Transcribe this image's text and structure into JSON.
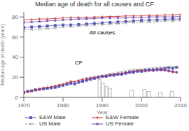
{
  "chart_data": {
    "type": "line",
    "title": "Median age of death for all causes and CF",
    "xlabel": "Year",
    "ylabel": "Median age of death (years)",
    "xlim": [
      1970,
      2010
    ],
    "ylim": [
      0,
      85
    ],
    "xticks": [
      1970,
      1980,
      1990,
      2000,
      2010
    ],
    "yticks": [
      0,
      20,
      40,
      60,
      80
    ],
    "series": [
      {
        "name": "E&W Male",
        "type": "line",
        "color": "#5555bb",
        "marker": "square",
        "line_style": "solid",
        "x": [
          1970,
          1972,
          1974,
          1976,
          1978,
          1980,
          1982,
          1984,
          1986,
          1988,
          1990,
          1992,
          1994,
          1996,
          1998,
          2000,
          2002,
          2004,
          2006,
          2008,
          2010
        ],
        "values": [
          69.5,
          70,
          70.5,
          71,
          71.5,
          72,
          72,
          72.5,
          73,
          73.5,
          74,
          74.5,
          75,
          75.5,
          76,
          76.5,
          77,
          77,
          77.5,
          78,
          78
        ]
      },
      {
        "name": "E&W Female",
        "type": "line",
        "color": "#cc3333",
        "marker": "plus",
        "line_style": "solid",
        "x": [
          1970,
          1972,
          1974,
          1976,
          1978,
          1980,
          1982,
          1984,
          1986,
          1988,
          1990,
          1992,
          1994,
          1996,
          1998,
          2000,
          2002,
          2004,
          2006,
          2008,
          2010
        ],
        "values": [
          77,
          77.5,
          78,
          78,
          78.5,
          79,
          79.5,
          79.5,
          79.5,
          80,
          80,
          80.5,
          80.5,
          81,
          81,
          81,
          81.5,
          81.5,
          82,
          82,
          82.5
        ]
      },
      {
        "name": "US Male",
        "type": "line",
        "color": "#888888",
        "marker": "x",
        "line_style": "dashed",
        "x": [
          1970,
          1972,
          1974,
          1976,
          1978,
          1980,
          1982,
          1984,
          1986,
          1988,
          1990,
          1992,
          1994,
          1996,
          1998,
          2000,
          2002,
          2004,
          2006,
          2008,
          2010
        ],
        "values": [
          67,
          67.5,
          68,
          68.5,
          69,
          70,
          70.5,
          71,
          71.5,
          72,
          72.5,
          73,
          73.5,
          74,
          74.5,
          75,
          75,
          75.5,
          76,
          76,
          76.5
        ]
      },
      {
        "name": "US Female",
        "type": "line",
        "color": "#7744aa",
        "marker": "star",
        "line_style": "solid",
        "x": [
          1970,
          1972,
          1974,
          1976,
          1978,
          1980,
          1982,
          1984,
          1986,
          1988,
          1990,
          1992,
          1994,
          1996,
          1998,
          2000,
          2002,
          2004,
          2006,
          2008,
          2010
        ],
        "values": [
          74.5,
          75,
          75.5,
          76,
          76.5,
          77,
          77.5,
          78,
          78,
          78.5,
          79,
          79,
          79,
          79,
          79.5,
          79.5,
          80,
          80,
          80,
          80,
          80.5
        ]
      },
      {
        "name": "E&W Male",
        "type": "line",
        "color": "#5555bb",
        "marker": "square",
        "line_style": "solid",
        "x": [
          1970,
          1971,
          1972,
          1973,
          1974,
          1975,
          1976,
          1977,
          1978,
          1979,
          1980,
          1981,
          1982,
          1983,
          1984,
          1985,
          1986,
          1987,
          1988,
          1989,
          1990,
          1991,
          1992,
          1993,
          1994,
          1995,
          1996,
          1997,
          1998,
          1999,
          2000,
          2001,
          2002,
          2003,
          2004,
          2005,
          2006,
          2007,
          2008,
          2009
        ],
        "values": [
          5,
          6,
          6.5,
          7.5,
          8,
          8.5,
          9,
          9.5,
          10,
          11,
          12,
          13,
          14,
          13.5,
          15,
          16,
          17,
          18,
          19,
          20,
          21,
          21,
          22,
          22,
          23,
          23,
          24,
          25,
          25,
          26,
          26,
          27,
          27.5,
          27,
          28,
          28,
          29,
          29.5,
          29,
          30
        ]
      },
      {
        "name": "E&W Female",
        "type": "line",
        "color": "#cc3333",
        "marker": "plus",
        "line_style": "solid",
        "x": [
          1970,
          1971,
          1972,
          1973,
          1974,
          1975,
          1976,
          1977,
          1978,
          1979,
          1980,
          1981,
          1982,
          1983,
          1984,
          1985,
          1986,
          1987,
          1988,
          1989,
          1990,
          1991,
          1992,
          1993,
          1994,
          1995,
          1996,
          1997,
          1998,
          1999,
          2000,
          2001,
          2002,
          2003,
          2004,
          2005,
          2006,
          2007,
          2008,
          2009
        ],
        "values": [
          5,
          5.5,
          6.5,
          7,
          8,
          9.5,
          10,
          10.5,
          11.5,
          12.5,
          13,
          14.5,
          16,
          15.5,
          17,
          18,
          19,
          19.5,
          20,
          20.5,
          21,
          21.5,
          22.5,
          23,
          23.5,
          24,
          24.5,
          25,
          26,
          26.5,
          27,
          26,
          26.5,
          27,
          27.5,
          28,
          27,
          26,
          25,
          25
        ]
      },
      {
        "name": "US Male",
        "type": "line",
        "color": "#888888",
        "marker": "x",
        "line_style": "dashed",
        "x": [
          1986,
          1987,
          1988,
          1989,
          1990,
          1991,
          1992,
          1993,
          1994,
          1995,
          1996,
          1997,
          1998,
          1999,
          2000,
          2001,
          2002,
          2003,
          2004,
          2005,
          2006,
          2007,
          2008,
          2009
        ],
        "values": [
          18,
          19,
          20,
          20.5,
          21,
          22,
          23,
          23.5,
          24.5,
          25,
          26,
          26.5,
          27,
          27.5,
          27.5,
          28,
          28.5,
          29,
          29,
          29.5,
          29,
          30,
          30,
          30
        ]
      },
      {
        "name": "US Female",
        "type": "line",
        "color": "#7744aa",
        "marker": "star",
        "line_style": "solid",
        "x": [
          1986,
          1987,
          1988,
          1989,
          1990,
          1991,
          1992,
          1993,
          1994,
          1995,
          1996,
          1997,
          1998,
          1999,
          2000,
          2001,
          2002,
          2003,
          2004,
          2005,
          2006,
          2007,
          2008,
          2009
        ],
        "values": [
          17,
          18,
          19,
          20,
          20.5,
          21,
          22,
          22.5,
          23,
          23.5,
          24,
          25,
          25.5,
          26,
          26,
          26.5,
          27,
          27.5,
          27,
          27,
          27,
          26.5,
          26,
          25
        ]
      },
      {
        "type": "bar",
        "x": [
          1989.3,
          1990.2,
          1991.1,
          1992.0,
          1997.5,
          2000.8,
          2001.9,
          2004.8,
          2007.8
        ],
        "widths": [
          0.7,
          0.7,
          0.7,
          0.7,
          0.9,
          0.9,
          0.9,
          0.9,
          0.9
        ],
        "values": [
          18,
          14,
          11,
          9,
          7,
          8,
          6,
          5,
          6
        ]
      }
    ],
    "annotations": [
      {
        "text": "All causes",
        "x": 1990,
        "y": 65
      },
      {
        "text": "CF",
        "x": 1984,
        "y": 35
      }
    ],
    "legend": "bottom"
  }
}
